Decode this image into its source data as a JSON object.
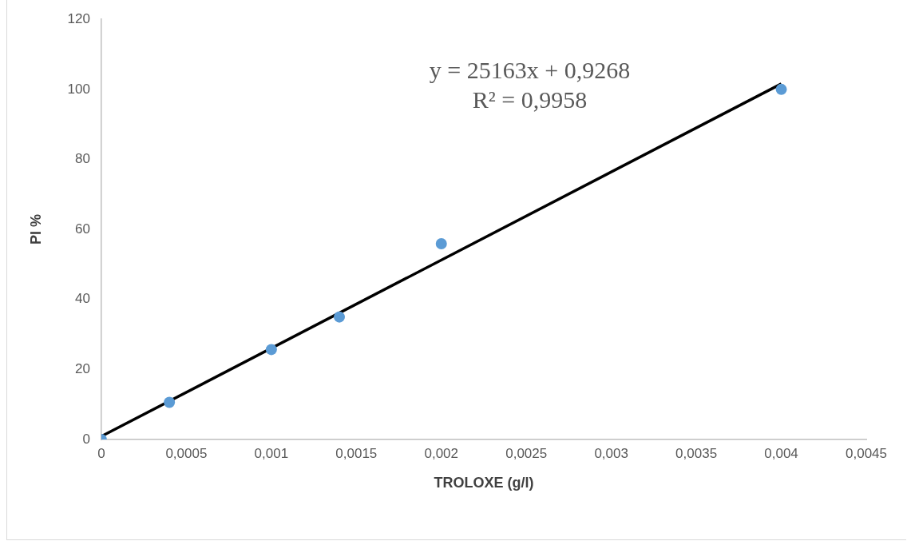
{
  "chart_data": {
    "type": "scatter",
    "xlabel": "TROLOXE (g/l)",
    "ylabel": "PI %",
    "x": [
      0,
      0.0004,
      0.001,
      0.0014,
      0.002,
      0.004
    ],
    "series": [
      {
        "type": "scatter",
        "color": "#5b9bd5",
        "marker": "circle",
        "values": [
          0,
          10.6,
          25.7,
          35.0,
          55.9,
          100.0
        ]
      },
      {
        "type": "line",
        "color": "#000000",
        "marker": "none",
        "line_style": "solid",
        "x": [
          0,
          0.004
        ],
        "values": [
          0.9,
          101.6
        ]
      }
    ],
    "annotations": [
      "y = 25163x + 0,9268",
      "R² = 0,9958"
    ],
    "xlim": [
      0,
      0.0045
    ],
    "xticks": [
      0,
      {
        "value": 0.0005,
        "label": "0,0005"
      },
      {
        "value": 0.001,
        "label": "0,001"
      },
      {
        "value": 0.0015,
        "label": "0,0015"
      },
      {
        "value": 0.002,
        "label": "0,002"
      },
      {
        "value": 0.0025,
        "label": "0,0025"
      },
      {
        "value": 0.003,
        "label": "0,003"
      },
      {
        "value": 0.0035,
        "label": "0,0035"
      },
      {
        "value": 0.004,
        "label": "0,004"
      },
      {
        "value": 0.0045,
        "label": "0,0045"
      }
    ],
    "ylim": [
      0,
      120
    ],
    "yticks": [
      0,
      20,
      40,
      60,
      80,
      100,
      120
    ],
    "grid": false,
    "legend": false
  }
}
